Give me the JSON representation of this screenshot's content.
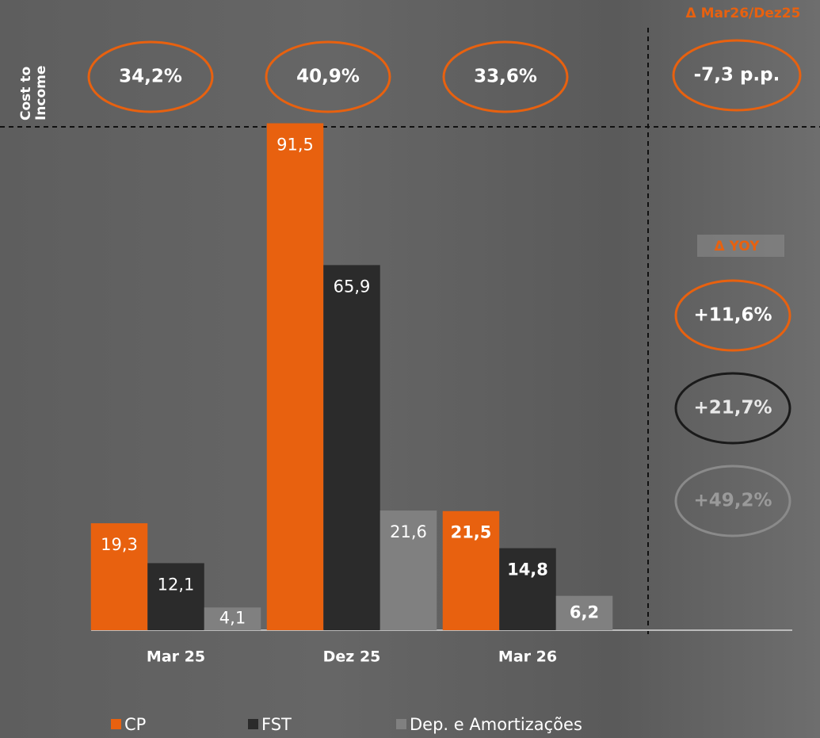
{
  "chart_data": {
    "type": "bar",
    "categories": [
      "Mar 25",
      "Dez 25",
      "Mar 26"
    ],
    "series": [
      {
        "name": "CP",
        "color": "#e8610f",
        "values": [
          19.3,
          91.5,
          21.5
        ],
        "value_labels": [
          "19,3",
          "91,5",
          "21,5"
        ]
      },
      {
        "name": "FST",
        "color": "#2b2b2b",
        "values": [
          12.1,
          65.9,
          14.8
        ],
        "value_labels": [
          "12,1",
          "65,9",
          "14,8"
        ]
      },
      {
        "name": "Dep. e Amortizações",
        "color": "#808080",
        "values": [
          4.1,
          21.6,
          6.2
        ],
        "value_labels": [
          "4,1",
          "21,6",
          "6,2"
        ]
      }
    ],
    "ylim": [
      0,
      92
    ]
  },
  "cost_to_income": {
    "label": "Cost to Income",
    "values": [
      34.2,
      40.9,
      33.6
    ],
    "value_labels": [
      "34,2%",
      "40,9%",
      "33,6%"
    ]
  },
  "delta": {
    "title": "Δ Mar26/Dez25",
    "value": -7.3,
    "label": "-7,3 p.p."
  },
  "yoy": {
    "title": "Δ YOY",
    "values": [
      11.6,
      21.7,
      49.2
    ],
    "value_labels": [
      "+11,6%",
      "+21,7%",
      "+49,2%"
    ]
  }
}
